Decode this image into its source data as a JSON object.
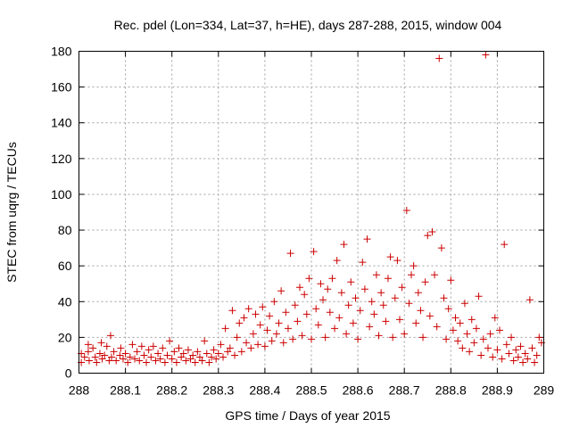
{
  "chart_data": {
    "type": "scatter",
    "title": "Rec. pdel (Lon=334, Lat=37, h=HE), days 287-288, 2015, window 004",
    "xlabel": "GPS time / Days of year 2015",
    "ylabel": "STEC from uqrg / TECUs",
    "xlim": [
      288,
      289
    ],
    "ylim": [
      0,
      180
    ],
    "xticks": [
      "288",
      "288.1",
      "288.2",
      "288.3",
      "288.4",
      "288.5",
      "288.6",
      "288.7",
      "288.8",
      "288.9",
      "289"
    ],
    "yticks": [
      "0",
      "20",
      "40",
      "60",
      "80",
      "100",
      "120",
      "140",
      "160",
      "180"
    ],
    "grid": true,
    "marker": "+",
    "color": "#cc0000",
    "series": [
      {
        "name": "STEC",
        "points": [
          [
            288.005,
            11
          ],
          [
            288.005,
            6
          ],
          [
            288.012,
            9
          ],
          [
            288.02,
            16
          ],
          [
            288.02,
            12
          ],
          [
            288.022,
            7
          ],
          [
            288.03,
            14
          ],
          [
            288.035,
            9
          ],
          [
            288.038,
            6
          ],
          [
            288.045,
            11
          ],
          [
            288.048,
            17
          ],
          [
            288.05,
            8
          ],
          [
            288.055,
            10
          ],
          [
            288.06,
            15
          ],
          [
            288.065,
            7
          ],
          [
            288.068,
            21
          ],
          [
            288.07,
            9
          ],
          [
            288.075,
            12
          ],
          [
            288.08,
            7
          ],
          [
            288.088,
            10
          ],
          [
            288.09,
            14
          ],
          [
            288.095,
            8
          ],
          [
            288.1,
            11
          ],
          [
            288.105,
            6
          ],
          [
            288.11,
            9
          ],
          [
            288.115,
            16
          ],
          [
            288.12,
            8
          ],
          [
            288.125,
            12
          ],
          [
            288.13,
            7
          ],
          [
            288.135,
            15
          ],
          [
            288.14,
            10
          ],
          [
            288.145,
            6
          ],
          [
            288.15,
            13
          ],
          [
            288.155,
            9
          ],
          [
            288.16,
            15
          ],
          [
            288.165,
            7
          ],
          [
            288.17,
            11
          ],
          [
            288.175,
            8
          ],
          [
            288.18,
            14
          ],
          [
            288.185,
            6
          ],
          [
            288.19,
            10
          ],
          [
            288.195,
            18
          ],
          [
            288.2,
            8
          ],
          [
            288.205,
            12
          ],
          [
            288.21,
            6
          ],
          [
            288.215,
            14
          ],
          [
            288.22,
            9
          ],
          [
            288.225,
            11
          ],
          [
            288.23,
            7
          ],
          [
            288.235,
            13
          ],
          [
            288.24,
            8
          ],
          [
            288.245,
            10
          ],
          [
            288.25,
            6
          ],
          [
            288.255,
            12
          ],
          [
            288.26,
            9
          ],
          [
            288.265,
            7
          ],
          [
            288.27,
            18
          ],
          [
            288.275,
            11
          ],
          [
            288.28,
            6
          ],
          [
            288.285,
            9
          ],
          [
            288.29,
            13
          ],
          [
            288.295,
            8
          ],
          [
            288.3,
            11
          ],
          [
            288.305,
            16
          ],
          [
            288.31,
            9
          ],
          [
            288.315,
            25
          ],
          [
            288.32,
            12
          ],
          [
            288.325,
            14
          ],
          [
            288.33,
            35
          ],
          [
            288.335,
            10
          ],
          [
            288.34,
            20
          ],
          [
            288.345,
            28
          ],
          [
            288.35,
            12
          ],
          [
            288.355,
            31
          ],
          [
            288.36,
            17
          ],
          [
            288.365,
            36
          ],
          [
            288.37,
            14
          ],
          [
            288.375,
            22
          ],
          [
            288.38,
            33
          ],
          [
            288.385,
            16
          ],
          [
            288.39,
            27
          ],
          [
            288.395,
            37
          ],
          [
            288.4,
            15
          ],
          [
            288.405,
            24
          ],
          [
            288.41,
            32
          ],
          [
            288.415,
            18
          ],
          [
            288.42,
            40
          ],
          [
            288.425,
            22
          ],
          [
            288.43,
            28
          ],
          [
            288.435,
            46
          ],
          [
            288.44,
            17
          ],
          [
            288.445,
            34
          ],
          [
            288.45,
            25
          ],
          [
            288.455,
            67
          ],
          [
            288.46,
            19
          ],
          [
            288.465,
            38
          ],
          [
            288.47,
            29
          ],
          [
            288.475,
            48
          ],
          [
            288.48,
            21
          ],
          [
            288.485,
            44
          ],
          [
            288.49,
            33
          ],
          [
            288.495,
            53
          ],
          [
            288.5,
            19
          ],
          [
            288.505,
            68
          ],
          [
            288.51,
            36
          ],
          [
            288.515,
            27
          ],
          [
            288.52,
            50
          ],
          [
            288.525,
            41
          ],
          [
            288.53,
            20
          ],
          [
            288.535,
            47
          ],
          [
            288.54,
            34
          ],
          [
            288.545,
            53
          ],
          [
            288.55,
            25
          ],
          [
            288.555,
            63
          ],
          [
            288.56,
            31
          ],
          [
            288.565,
            45
          ],
          [
            288.57,
            72
          ],
          [
            288.575,
            22
          ],
          [
            288.58,
            38
          ],
          [
            288.585,
            51
          ],
          [
            288.59,
            28
          ],
          [
            288.595,
            42
          ],
          [
            288.6,
            19
          ],
          [
            288.605,
            35
          ],
          [
            288.61,
            62
          ],
          [
            288.615,
            47
          ],
          [
            288.62,
            75
          ],
          [
            288.625,
            26
          ],
          [
            288.63,
            40
          ],
          [
            288.635,
            33
          ],
          [
            288.64,
            55
          ],
          [
            288.645,
            21
          ],
          [
            288.65,
            45
          ],
          [
            288.655,
            38
          ],
          [
            288.66,
            29
          ],
          [
            288.665,
            53
          ],
          [
            288.67,
            65
          ],
          [
            288.675,
            20
          ],
          [
            288.68,
            42
          ],
          [
            288.685,
            63
          ],
          [
            288.69,
            30
          ],
          [
            288.695,
            48
          ],
          [
            288.7,
            22
          ],
          [
            288.705,
            91
          ],
          [
            288.71,
            39
          ],
          [
            288.715,
            55
          ],
          [
            288.72,
            60
          ],
          [
            288.725,
            28
          ],
          [
            288.73,
            45
          ],
          [
            288.735,
            35
          ],
          [
            288.74,
            20
          ],
          [
            288.745,
            51
          ],
          [
            288.75,
            77
          ],
          [
            288.755,
            32
          ],
          [
            288.76,
            79
          ],
          [
            288.765,
            55
          ],
          [
            288.77,
            26
          ],
          [
            288.775,
            176
          ],
          [
            288.78,
            70
          ],
          [
            288.785,
            42
          ],
          [
            288.79,
            19
          ],
          [
            288.795,
            36
          ],
          [
            288.8,
            52
          ],
          [
            288.805,
            24
          ],
          [
            288.81,
            31
          ],
          [
            288.815,
            18
          ],
          [
            288.82,
            28
          ],
          [
            288.825,
            14
          ],
          [
            288.83,
            39
          ],
          [
            288.835,
            22
          ],
          [
            288.84,
            12
          ],
          [
            288.845,
            30
          ],
          [
            288.85,
            17
          ],
          [
            288.855,
            25
          ],
          [
            288.86,
            43
          ],
          [
            288.865,
            10
          ],
          [
            288.87,
            19
          ],
          [
            288.875,
            178
          ],
          [
            288.88,
            14
          ],
          [
            288.885,
            22
          ],
          [
            288.89,
            9
          ],
          [
            288.895,
            31
          ],
          [
            288.9,
            13
          ],
          [
            288.905,
            24
          ],
          [
            288.91,
            8
          ],
          [
            288.915,
            72
          ],
          [
            288.92,
            16
          ],
          [
            288.925,
            11
          ],
          [
            288.93,
            20
          ],
          [
            288.935,
            7
          ],
          [
            288.94,
            13
          ],
          [
            288.945,
            9
          ],
          [
            288.95,
            15
          ],
          [
            288.955,
            6
          ],
          [
            288.96,
            11
          ],
          [
            288.965,
            8
          ],
          [
            288.97,
            41
          ],
          [
            288.975,
            14
          ],
          [
            288.98,
            6
          ],
          [
            288.985,
            10
          ],
          [
            288.99,
            20
          ],
          [
            288.995,
            17
          ]
        ]
      }
    ]
  }
}
